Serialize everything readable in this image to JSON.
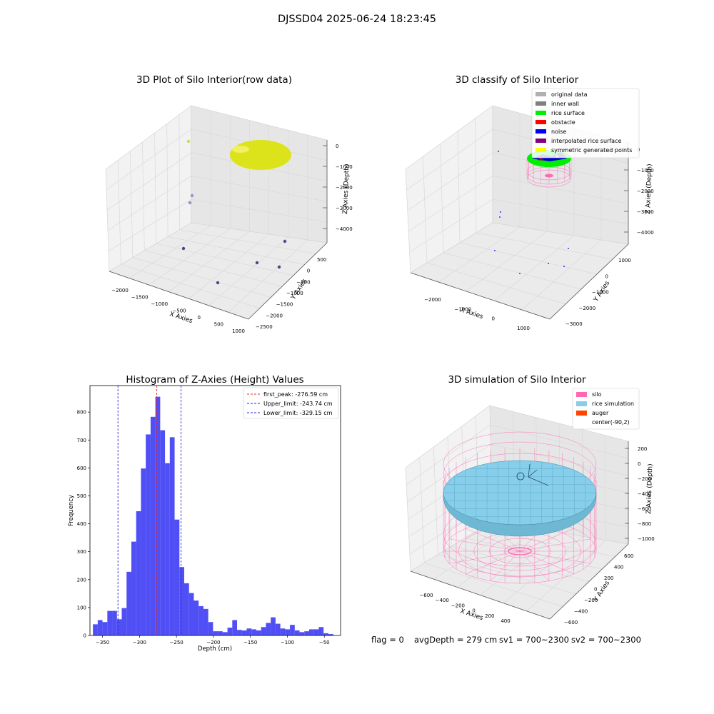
{
  "figure": {
    "suptitle": "DJSSD04 2025-06-24 18:23:45",
    "footer": {
      "flag": "flag = 0",
      "avgDepth": "avgDepth = 279 cm",
      "sv1": "sv1 = 700~2300",
      "sv2": "sv2 = 700~2300"
    }
  },
  "colors": {
    "hist_bar": "#4b4bf5",
    "first_peak": "#e03030",
    "limits": "#2a2ad8",
    "yellow_points": "#dde31a",
    "outlier_points": "#5b3d86",
    "green": "#00ee00",
    "silo": "#ff69b4",
    "rice": "#87ceeb",
    "auger": "#ff4500"
  },
  "chart_data": [
    {
      "id": "raw3d",
      "type": "scatter",
      "projection": "3d",
      "title": "3D Plot of Silo Interior(row data)",
      "xlabel": "X Axies",
      "ylabel": "Y Axies",
      "zlabel": "Z Axies (Depth)",
      "x_ticks": [
        "−2000",
        "−1500",
        "−1000",
        "−500",
        "0",
        "500",
        "1000"
      ],
      "y_ticks": [
        "500",
        "0",
        "−500",
        "−1000",
        "−1500",
        "−2000",
        "−2500"
      ],
      "z_ticks": [
        "0",
        "−1000",
        "−2000",
        "−3000",
        "−4000"
      ],
      "grid": true
    },
    {
      "id": "classify3d",
      "type": "scatter",
      "projection": "3d",
      "title": "3D classify of Silo Interior",
      "xlabel": "X Axies",
      "ylabel": "Y Axies",
      "zlabel": "Z Axies (Depth)",
      "x_ticks": [
        "−2000",
        "−1000",
        "0",
        "1000"
      ],
      "y_ticks": [
        "1000",
        "0",
        "−1000",
        "−2000",
        "−3000"
      ],
      "z_ticks": [
        "0",
        "−1000",
        "−2000",
        "−3000",
        "−4000"
      ],
      "legend_position": "top-right",
      "legend": [
        {
          "label": "original data",
          "color": "#b0b0b0"
        },
        {
          "label": "inner wall",
          "color": "#808080"
        },
        {
          "label": "rice surface",
          "color": "#00ee00"
        },
        {
          "label": "obstacle",
          "color": "#ff0000"
        },
        {
          "label": "noise",
          "color": "#0000ff"
        },
        {
          "label": "interpolated rice surface",
          "color": "#800080"
        },
        {
          "label": "symmetric generated points",
          "color": "#ffff00"
        }
      ],
      "grid": true
    },
    {
      "id": "histogram",
      "type": "bar",
      "title": "Histogram of Z-Axies (Height) Values",
      "xlabel": "Depth (cm)",
      "ylabel": "Frequency",
      "xlim": [
        -367,
        -28
      ],
      "ylim": [
        0,
        895
      ],
      "x_ticks": [
        -350,
        -300,
        -250,
        -200,
        -150,
        -100,
        -50
      ],
      "y_ticks": [
        0,
        100,
        200,
        300,
        400,
        500,
        600,
        700,
        800
      ],
      "bin_start": -363,
      "bin_width": 6.5,
      "values": [
        40,
        55,
        48,
        88,
        88,
        58,
        98,
        228,
        336,
        445,
        598,
        720,
        783,
        855,
        735,
        617,
        710,
        415,
        245,
        187,
        152,
        125,
        105,
        95,
        48,
        15,
        15,
        12,
        28,
        55,
        20,
        18,
        25,
        22,
        18,
        30,
        45,
        65,
        42,
        25,
        22,
        38,
        18,
        12,
        15,
        22,
        22,
        30,
        8,
        5
      ],
      "vlines": [
        {
          "label": "first_peak: -276.59 cm",
          "x": -276.59,
          "color": "#e03030"
        },
        {
          "label": "Upper_limit: -243.74 cm",
          "x": -243.74,
          "color": "#2a2ad8"
        },
        {
          "label": "Lower_limit: -329.15 cm",
          "x": -329.15,
          "color": "#2a2ad8"
        }
      ],
      "legend_position": "top-right"
    },
    {
      "id": "sim3d",
      "type": "surface",
      "projection": "3d",
      "title": "3D simulation of Silo Interior",
      "xlabel": "X Axies",
      "ylabel": "Y Axies",
      "zlabel": "Z Axies (Depth)",
      "x_ticks": [
        "−600",
        "−400",
        "−200",
        "0",
        "200",
        "400"
      ],
      "y_ticks": [
        "600",
        "400",
        "200",
        "0",
        "−200",
        "−400",
        "−600"
      ],
      "z_ticks": [
        "200",
        "0",
        "−200",
        "−400",
        "−600",
        "−800",
        "−1000"
      ],
      "legend_position": "top-right",
      "legend": [
        {
          "label": "silo",
          "color": "#ff69b4"
        },
        {
          "label": "rice simulation",
          "color": "#87ceeb"
        },
        {
          "label": "auger",
          "color": "#ff4500"
        },
        {
          "label": "center(-90,2)",
          "color": null
        }
      ],
      "grid": true
    }
  ]
}
